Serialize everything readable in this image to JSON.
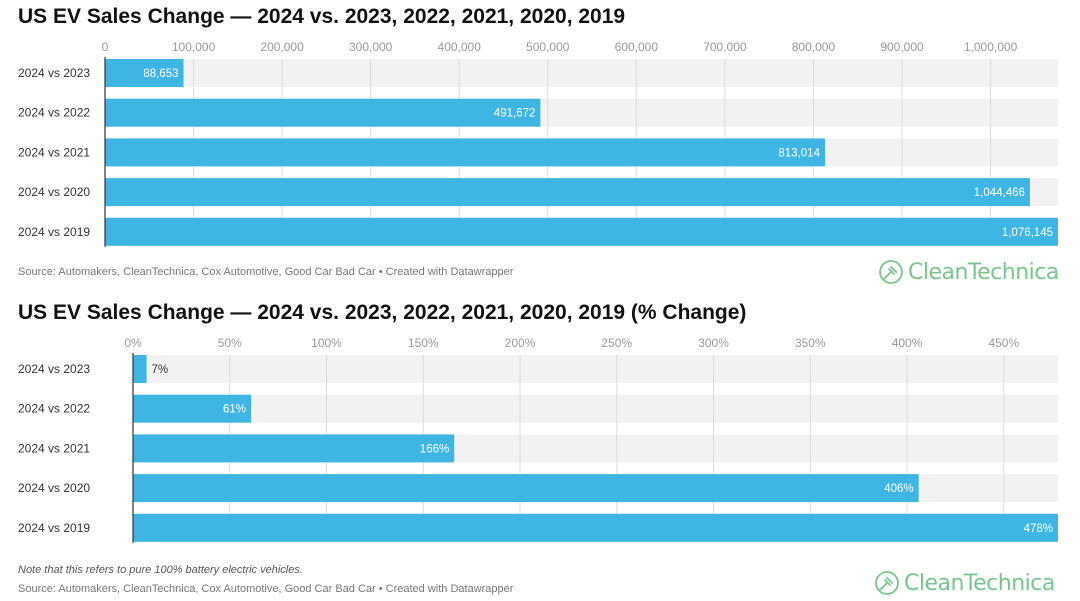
{
  "chart_data": [
    {
      "type": "bar",
      "orientation": "horizontal",
      "title": "US EV Sales Change — 2024 vs. 2023, 2022, 2021, 2020, 2019",
      "categories": [
        "2024 vs 2023",
        "2024 vs 2022",
        "2024 vs 2021",
        "2024 vs 2020",
        "2024 vs 2019"
      ],
      "values": [
        88653,
        491672,
        813014,
        1044466,
        1076145
      ],
      "value_labels": [
        "88,653",
        "491,672",
        "813,014",
        "1,044,466",
        "1,076,145"
      ],
      "xticks": [
        0,
        100000,
        200000,
        300000,
        400000,
        500000,
        600000,
        700000,
        800000,
        900000,
        1000000
      ],
      "xtick_labels": [
        "0",
        "100,000",
        "200,000",
        "300,000",
        "400,000",
        "500,000",
        "600,000",
        "700,000",
        "800,000",
        "900,000",
        "1,000,000"
      ],
      "xlim": [
        0,
        1076145
      ],
      "axis_position": "top",
      "grid": true,
      "legend": "none",
      "bar_color": "#3fb5e3",
      "track_color": "#f2f2f2",
      "source": "Source: Automakers, CleanTechnica, Cox Automotive, Good Car Bad Car • Created with Datawrapper"
    },
    {
      "type": "bar",
      "orientation": "horizontal",
      "title": "US EV Sales Change — 2024 vs. 2023, 2022, 2021, 2020, 2019 (% Change)",
      "categories": [
        "2024 vs 2023",
        "2024 vs 2022",
        "2024 vs 2021",
        "2024 vs 2020",
        "2024 vs 2019"
      ],
      "values": [
        7,
        61,
        166,
        406,
        478
      ],
      "value_labels": [
        "7%",
        "61%",
        "166%",
        "406%",
        "478%"
      ],
      "xticks": [
        0,
        50,
        100,
        150,
        200,
        250,
        300,
        350,
        400,
        450
      ],
      "xtick_labels": [
        "0%",
        "50%",
        "100%",
        "150%",
        "200%",
        "250%",
        "300%",
        "350%",
        "400%",
        "450%"
      ],
      "xlim": [
        0,
        478
      ],
      "axis_position": "top",
      "grid": true,
      "legend": "none",
      "bar_color": "#3fb5e3",
      "track_color": "#f2f2f2",
      "note": "Note that this refers to pure 100% battery electric vehicles.",
      "source": "Source: Automakers, CleanTechnica, Cox Automotive, Good Car Bad Car • Created with Datawrapper"
    }
  ],
  "logo": {
    "text": "CleanTechnica",
    "color": "#7bc58d",
    "icon": "plug-leaf-icon"
  }
}
